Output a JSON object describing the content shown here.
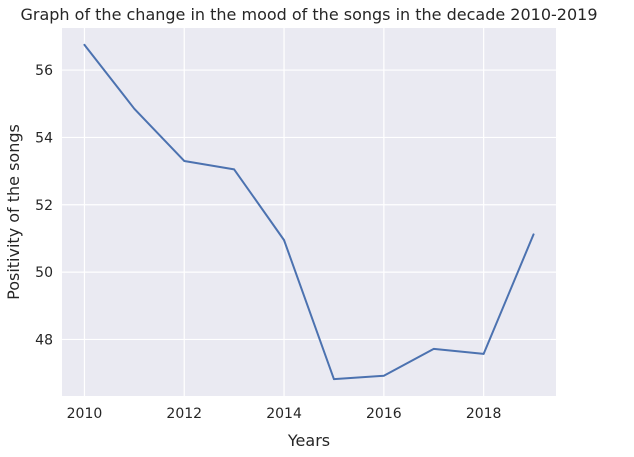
{
  "chart_data": {
    "type": "line",
    "title": "Graph of the change in the mood of the songs in the decade 2010-2019",
    "xlabel": "Years",
    "ylabel": "Positivity of the songs",
    "x": [
      2010,
      2011,
      2012,
      2013,
      2014,
      2015,
      2016,
      2017,
      2018,
      2019
    ],
    "series": [
      {
        "values": [
          56.75,
          54.85,
          53.3,
          53.05,
          50.95,
          46.82,
          46.92,
          47.72,
          47.57,
          51.12
        ]
      }
    ],
    "xticks": [
      2010,
      2012,
      2014,
      2016,
      2018
    ],
    "yticks": [
      48,
      50,
      52,
      54,
      56
    ],
    "xlim": [
      2009.55,
      2019.45
    ],
    "ylim": [
      46.32,
      57.25
    ],
    "grid": true,
    "style": {
      "plot_background": "#eaeaf2",
      "grid_color": "#ffffff",
      "line_color": "#4c72b0",
      "text_color": "#262626"
    }
  }
}
